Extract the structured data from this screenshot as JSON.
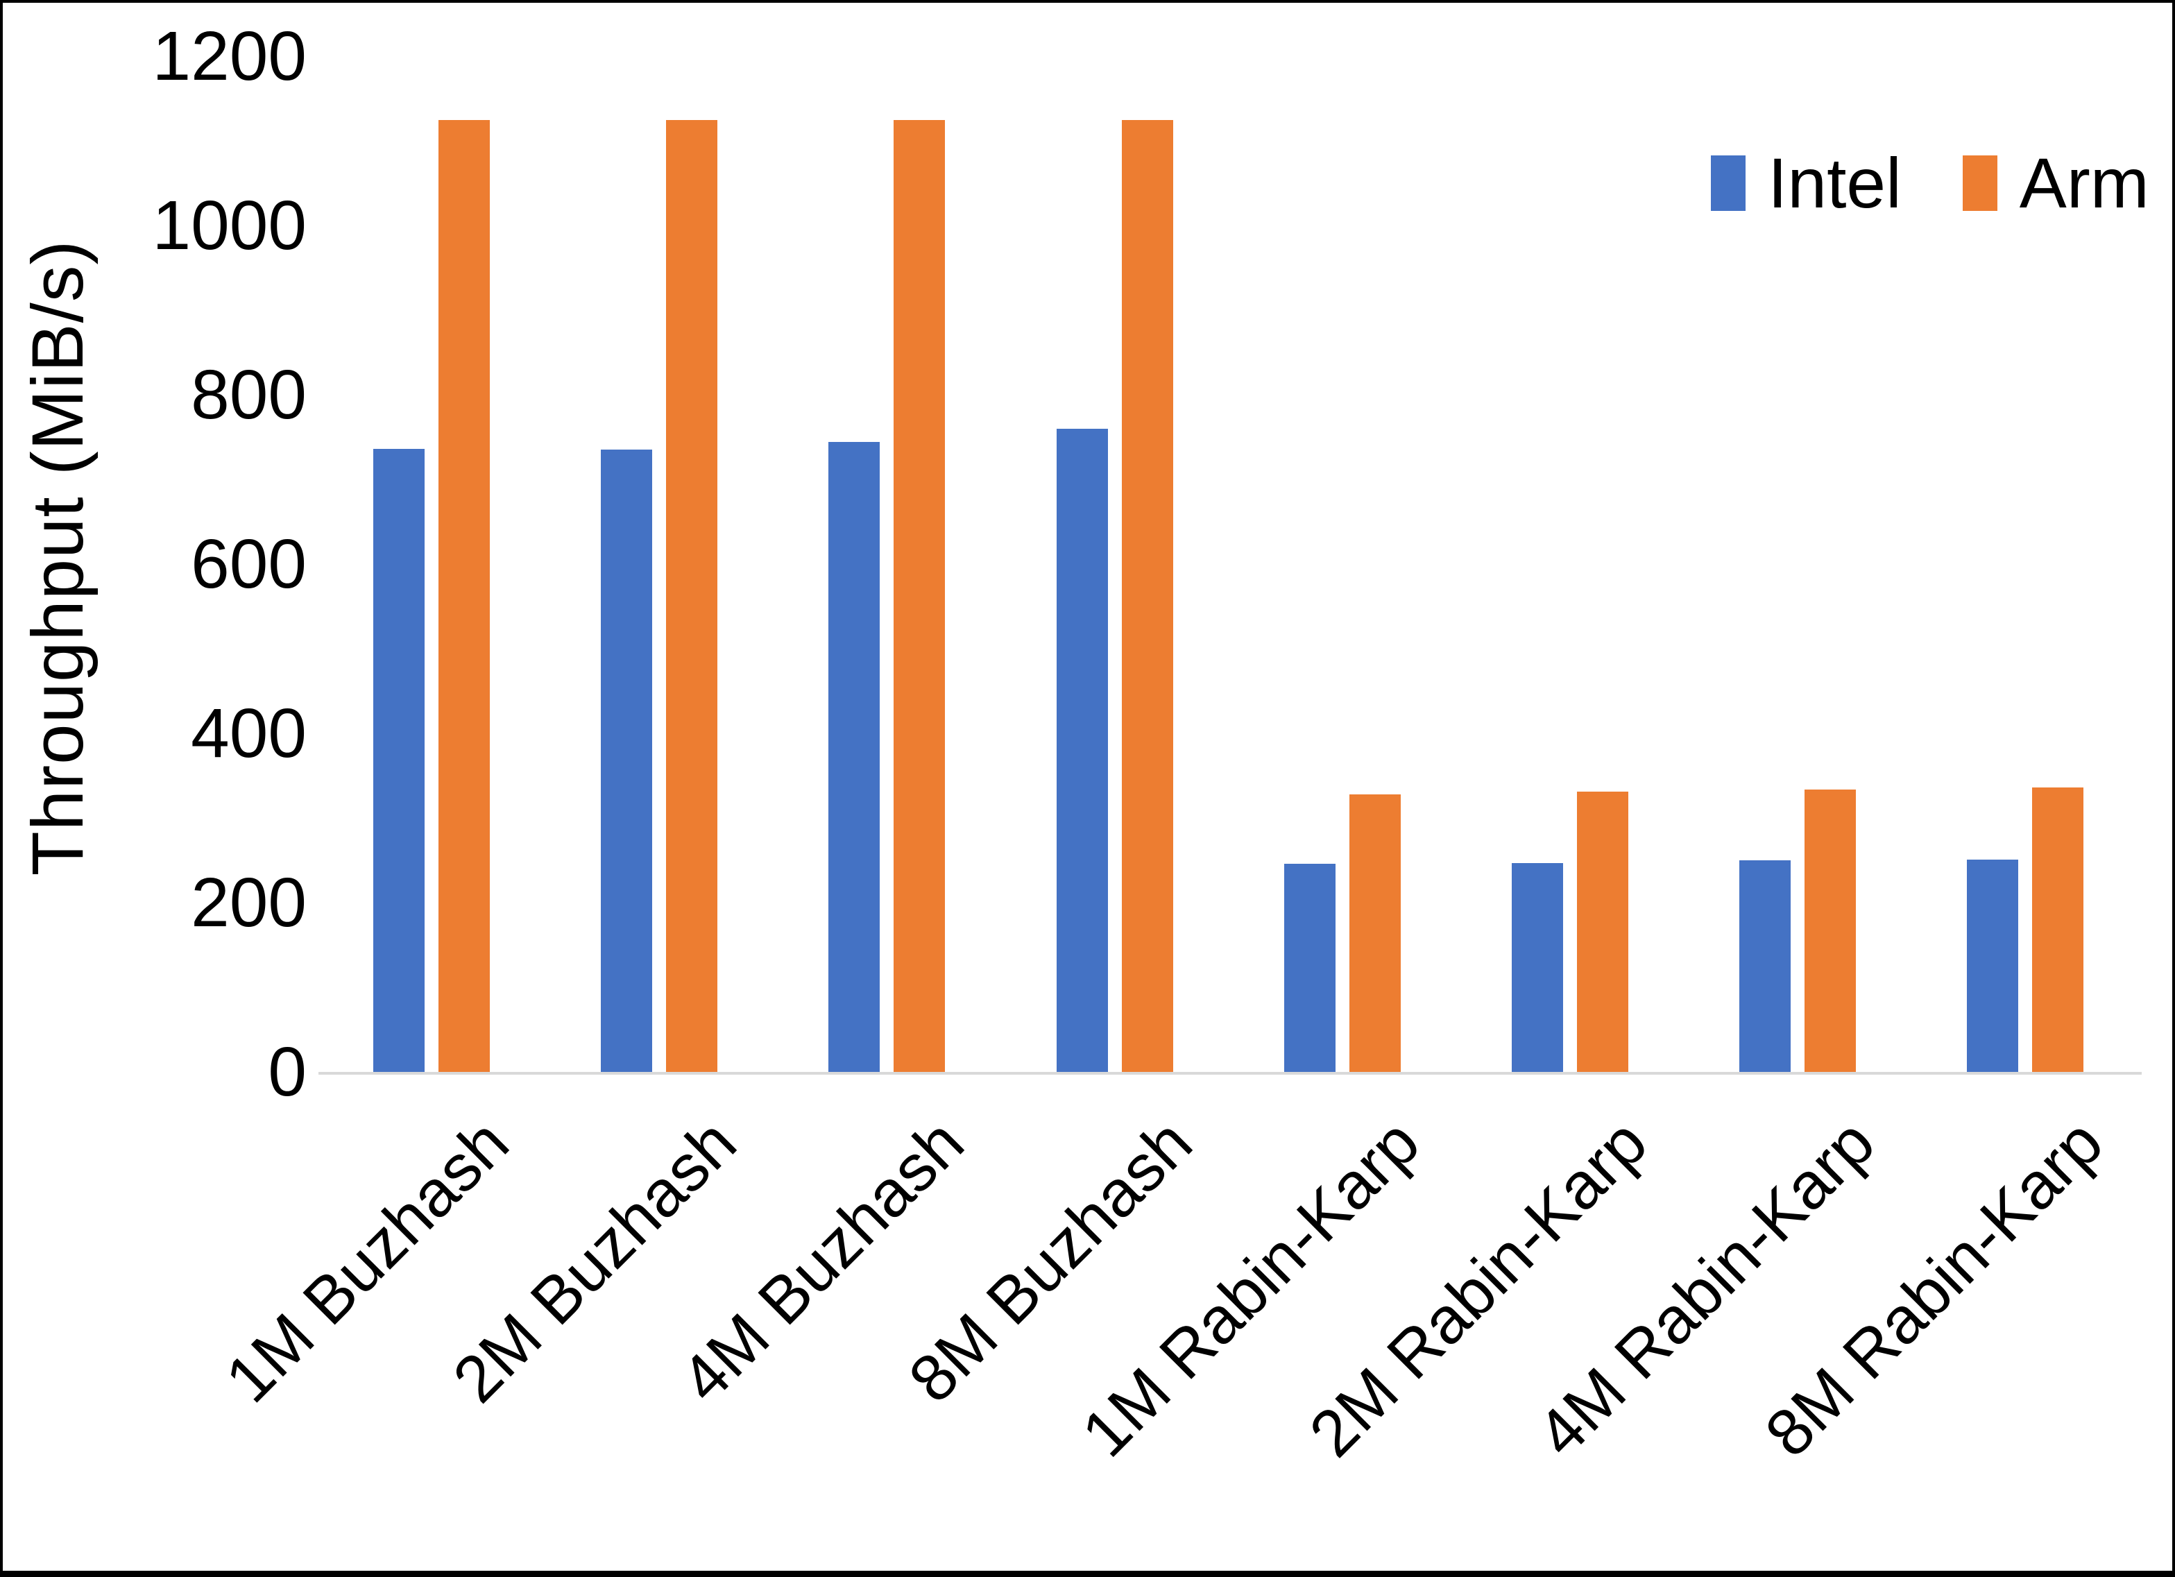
{
  "colors": {
    "intel": "#4472C4",
    "arm": "#ED7D31",
    "axis_line": "#D9D9D9",
    "text": "#000000",
    "frame_border": "#000000",
    "background": "#FFFFFF"
  },
  "legend": {
    "position": "top-right",
    "items": [
      {
        "label": "Intel",
        "color": "#4472C4"
      },
      {
        "label": "Arm",
        "color": "#ED7D31"
      }
    ]
  },
  "chart_data": {
    "type": "bar",
    "title": "",
    "xlabel": "",
    "ylabel": "Throughput (MiB/s)",
    "ylim": [
      0,
      1200
    ],
    "ytick_step": 200,
    "yticks": [
      0,
      200,
      400,
      600,
      800,
      1000,
      1200
    ],
    "grid": false,
    "legend_position": "top-right",
    "categories": [
      "1M Buzhash",
      "2M Buzhash",
      "4M Buzhash",
      "8M Buzhash",
      "1M Rabin-Karp",
      "2M Rabin-Karp",
      "4M Rabin-Karp",
      "8M Rabin-Karp"
    ],
    "series": [
      {
        "name": "Intel",
        "color": "#4472C4",
        "values": [
          736,
          735,
          744,
          760,
          246,
          247,
          250,
          251
        ]
      },
      {
        "name": "Arm",
        "color": "#ED7D31",
        "values": [
          1125,
          1125,
          1125,
          1125,
          328,
          331,
          334,
          336
        ]
      }
    ]
  }
}
